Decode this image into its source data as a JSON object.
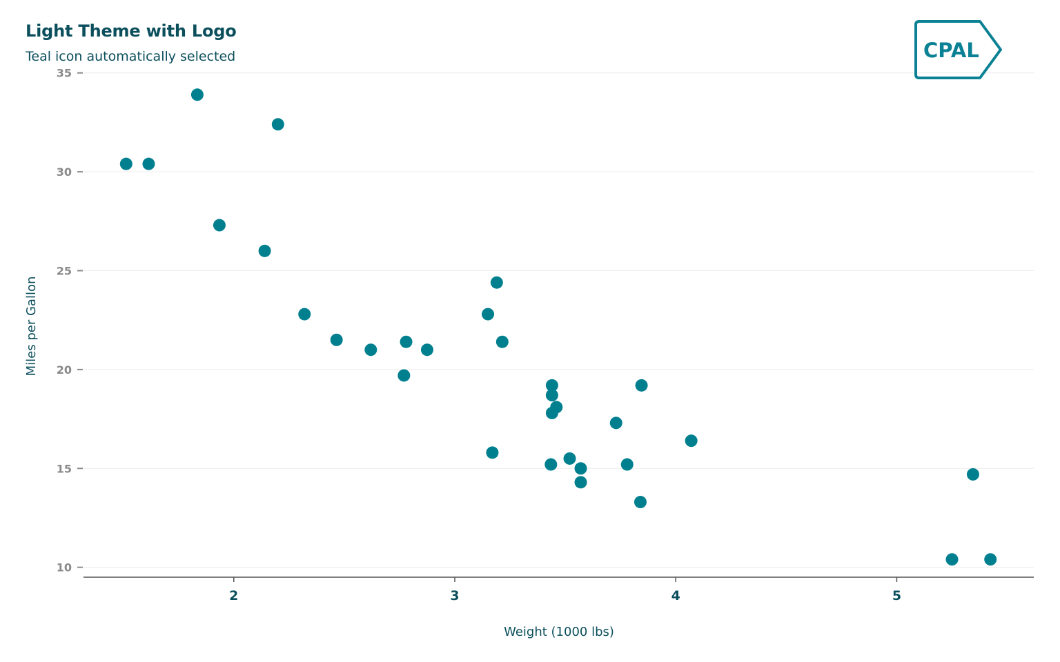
{
  "title": "Light Theme with Logo",
  "subtitle": "Teal icon automatically selected",
  "logo": {
    "text": "CPAL",
    "icon": "cpal-tag-logo"
  },
  "colors": {
    "point": "#00808f",
    "title": "#0b4f5c",
    "tick_y": "#8a8a8a",
    "tick_x": "#0b4f5c",
    "grid": "#ececec",
    "axis": "#555555",
    "logo": "#0a8194"
  },
  "chart_data": {
    "type": "scatter",
    "xlabel": "Weight (1000 lbs)",
    "ylabel": "Miles per Gallon",
    "xlim": [
      1.32,
      5.62
    ],
    "ylim": [
      9.5,
      35.2
    ],
    "xticks": [
      2,
      3,
      4,
      5
    ],
    "yticks": [
      10,
      15,
      20,
      25,
      30,
      35
    ],
    "grid": "horizontal",
    "points": [
      {
        "x": 2.62,
        "y": 21.0
      },
      {
        "x": 2.875,
        "y": 21.0
      },
      {
        "x": 2.32,
        "y": 22.8
      },
      {
        "x": 3.215,
        "y": 21.4
      },
      {
        "x": 3.44,
        "y": 18.7
      },
      {
        "x": 3.46,
        "y": 18.1
      },
      {
        "x": 3.57,
        "y": 14.3
      },
      {
        "x": 3.19,
        "y": 24.4
      },
      {
        "x": 3.15,
        "y": 22.8
      },
      {
        "x": 3.44,
        "y": 19.2
      },
      {
        "x": 3.44,
        "y": 17.8
      },
      {
        "x": 4.07,
        "y": 16.4
      },
      {
        "x": 3.73,
        "y": 17.3
      },
      {
        "x": 3.78,
        "y": 15.2
      },
      {
        "x": 5.25,
        "y": 10.4
      },
      {
        "x": 5.424,
        "y": 10.4
      },
      {
        "x": 5.345,
        "y": 14.7
      },
      {
        "x": 2.2,
        "y": 32.4
      },
      {
        "x": 1.615,
        "y": 30.4
      },
      {
        "x": 1.835,
        "y": 33.9
      },
      {
        "x": 2.465,
        "y": 21.5
      },
      {
        "x": 3.52,
        "y": 15.5
      },
      {
        "x": 3.435,
        "y": 15.2
      },
      {
        "x": 3.84,
        "y": 13.3
      },
      {
        "x": 3.845,
        "y": 19.2
      },
      {
        "x": 1.935,
        "y": 27.3
      },
      {
        "x": 2.14,
        "y": 26.0
      },
      {
        "x": 1.513,
        "y": 30.4
      },
      {
        "x": 3.17,
        "y": 15.8
      },
      {
        "x": 2.77,
        "y": 19.7
      },
      {
        "x": 3.57,
        "y": 15.0
      },
      {
        "x": 2.78,
        "y": 21.4
      }
    ]
  }
}
